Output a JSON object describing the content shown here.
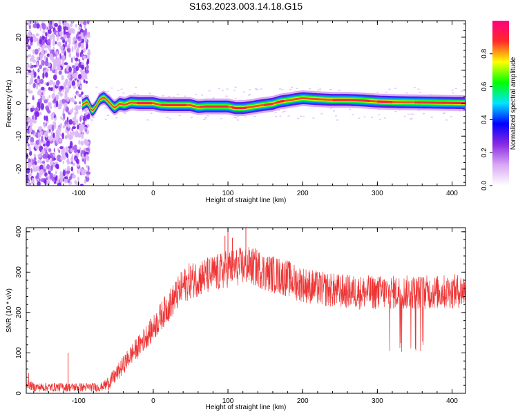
{
  "figure": {
    "title": "S163.2023.003.14.18.G15"
  },
  "chart_data": [
    {
      "type": "heatmap",
      "xlabel": "Height of straight line (km)",
      "ylabel": "Frequency (Hz)",
      "xlim": [
        -170,
        418
      ],
      "ylim": [
        -25,
        25
      ],
      "xticks": [
        -100,
        0,
        100,
        200,
        300,
        400
      ],
      "xtick_labels": [
        "-100",
        "0",
        "100",
        "200",
        "300",
        "400"
      ],
      "yticks": [
        -20,
        -10,
        0,
        10,
        20
      ],
      "ytick_labels": [
        "-20",
        "-10",
        "0",
        "10",
        "20"
      ],
      "grid": false,
      "ridge": {
        "x": [
          -95,
          -88,
          -82,
          -78,
          -72,
          -66,
          -60,
          -52,
          -45,
          -38,
          -30,
          -20,
          -10,
          0,
          10,
          20,
          30,
          40,
          50,
          60,
          70,
          80,
          90,
          100,
          110,
          120,
          130,
          140,
          150,
          160,
          170,
          180,
          190,
          200,
          220,
          240,
          260,
          280,
          300,
          330,
          360,
          390,
          418
        ],
        "y": [
          -0.5,
          0.5,
          -2.5,
          -1.5,
          1.0,
          1.8,
          0.5,
          -1.5,
          -0.2,
          -0.5,
          0.2,
          0.0,
          0.0,
          0.0,
          -0.5,
          -0.6,
          -0.6,
          -0.6,
          -0.6,
          -1.2,
          -1.0,
          -1.0,
          -1.0,
          -1.0,
          -1.5,
          -1.5,
          -1.2,
          -0.8,
          -0.5,
          -0.2,
          0.5,
          0.8,
          1.2,
          1.5,
          1.2,
          1.0,
          1.0,
          0.8,
          0.5,
          0.3,
          0.2,
          0.1,
          0.0
        ]
      },
      "noise_region_x": [
        -170,
        -95
      ],
      "colorbar": {
        "label": "Normalized spectral amplitude",
        "range": [
          0,
          1
        ],
        "ticks": [
          0.0,
          0.2,
          0.4,
          0.6,
          0.8
        ],
        "tick_labels": [
          "0.0",
          "0.2",
          "0.4",
          "0.6",
          "0.8"
        ],
        "colors": [
          "#ffffff",
          "#d9a8f5",
          "#8a2be2",
          "#0000ff",
          "#00e5ff",
          "#00ff00",
          "#ffff00",
          "#ff2a2a",
          "#ff0080"
        ]
      }
    },
    {
      "type": "line",
      "xlabel": "Height of straight line (km)",
      "ylabel": "SNR (10 * v/v)",
      "xlim": [
        -170,
        418
      ],
      "ylim": [
        0,
        410
      ],
      "xticks": [
        -100,
        0,
        100,
        200,
        300,
        400
      ],
      "xtick_labels": [
        "-100",
        "0",
        "100",
        "200",
        "300",
        "400"
      ],
      "yticks": [
        0,
        100,
        200,
        300,
        400
      ],
      "ytick_labels": [
        "0",
        "100",
        "200",
        "300",
        "400"
      ],
      "grid": false,
      "color": "#ee3333",
      "x": [
        -170,
        -160,
        -140,
        -120,
        -100,
        -80,
        -70,
        -60,
        -50,
        -40,
        -30,
        -20,
        -10,
        0,
        10,
        20,
        30,
        40,
        50,
        60,
        70,
        80,
        90,
        100,
        110,
        120,
        130,
        140,
        150,
        160,
        170,
        180,
        190,
        200,
        220,
        240,
        260,
        280,
        300,
        320,
        340,
        360,
        380,
        400,
        418
      ],
      "y": [
        25,
        15,
        15,
        15,
        15,
        15,
        15,
        25,
        45,
        70,
        95,
        115,
        140,
        160,
        190,
        215,
        240,
        265,
        280,
        285,
        290,
        295,
        300,
        310,
        312,
        315,
        315,
        310,
        300,
        295,
        290,
        285,
        275,
        270,
        260,
        255,
        252,
        250,
        250,
        250,
        250,
        250,
        250,
        252,
        255
      ],
      "spikes": [
        {
          "x": -167,
          "y": 50
        },
        {
          "x": -114,
          "y": 100
        },
        {
          "x": 96,
          "y": 390
        },
        {
          "x": 100,
          "y": 410
        },
        {
          "x": 106,
          "y": 385
        },
        {
          "x": 124,
          "y": 410
        }
      ],
      "dropouts": {
        "x_range": [
          300,
          362
        ],
        "min_y": 100
      }
    }
  ]
}
